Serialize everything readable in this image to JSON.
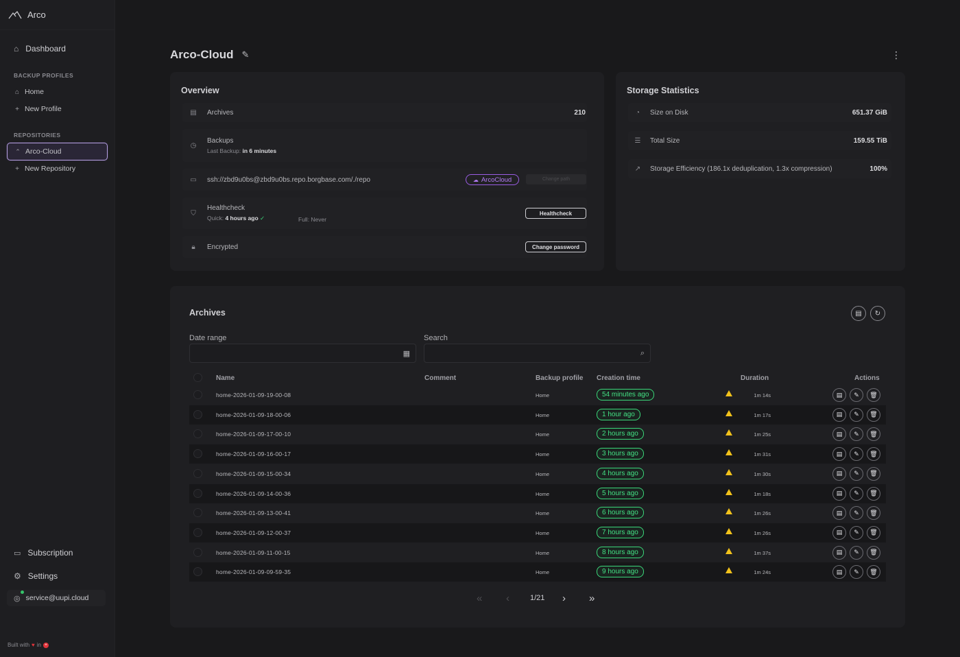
{
  "app": {
    "name": "Arco"
  },
  "sidebar": {
    "dashboard": "Dashboard",
    "backup_profiles_label": "BACKUP PROFILES",
    "profiles": [
      {
        "label": "Home",
        "icon": "home-icon"
      },
      {
        "label": "New Profile",
        "icon": "plus-icon"
      }
    ],
    "repositories_label": "REPOSITORIES",
    "repos": [
      {
        "label": "Arco-Cloud",
        "icon": "cloud-icon",
        "active": true
      },
      {
        "label": "New Repository",
        "icon": "plus-icon"
      }
    ],
    "subscription": "Subscription",
    "settings": "Settings",
    "user": "service@uupi.cloud",
    "footer_built": "Built with",
    "footer_in": "in"
  },
  "header": {
    "title": "Arco-Cloud"
  },
  "overview": {
    "title": "Overview",
    "archives_label": "Archives",
    "archives_count": "210",
    "backups_label": "Backups",
    "last_backup_label": "Last Backup:",
    "last_backup_value": "in 6 minutes",
    "repo_url": "ssh://zbd9u0bs@zbd9u0bs.repo.borgbase.com/./repo",
    "cloud_badge": "ArcoCloud",
    "change_path": "Change path",
    "healthcheck_label": "Healthcheck",
    "quick_label": "Quick:",
    "quick_value": "4 hours ago",
    "full_text": "Full: Never",
    "healthcheck_button": "Healthcheck",
    "encrypted_label": "Encrypted",
    "change_password": "Change password"
  },
  "storage": {
    "title": "Storage Statistics",
    "size_on_disk_label": "Size on Disk",
    "size_on_disk": "651.37 GiB",
    "total_size_label": "Total Size",
    "total_size": "159.55 TiB",
    "efficiency_label": "Storage Efficiency (186.1x deduplication, 1.3x compression)",
    "efficiency": "100%"
  },
  "archives": {
    "title": "Archives",
    "date_range_label": "Date range",
    "search_label": "Search",
    "columns": {
      "name": "Name",
      "comment": "Comment",
      "profile": "Backup profile",
      "creation": "Creation time",
      "duration": "Duration",
      "actions": "Actions"
    },
    "rows": [
      {
        "name": "home-2026-01-09-19-00-08",
        "profile": "Home",
        "time": "54 minutes ago",
        "duration": "1m 14s"
      },
      {
        "name": "home-2026-01-09-18-00-06",
        "profile": "Home",
        "time": "1 hour ago",
        "duration": "1m 17s"
      },
      {
        "name": "home-2026-01-09-17-00-10",
        "profile": "Home",
        "time": "2 hours ago",
        "duration": "1m 25s"
      },
      {
        "name": "home-2026-01-09-16-00-17",
        "profile": "Home",
        "time": "3 hours ago",
        "duration": "1m 31s"
      },
      {
        "name": "home-2026-01-09-15-00-34",
        "profile": "Home",
        "time": "4 hours ago",
        "duration": "1m 30s"
      },
      {
        "name": "home-2026-01-09-14-00-36",
        "profile": "Home",
        "time": "5 hours ago",
        "duration": "1m 18s"
      },
      {
        "name": "home-2026-01-09-13-00-41",
        "profile": "Home",
        "time": "6 hours ago",
        "duration": "1m 26s"
      },
      {
        "name": "home-2026-01-09-12-00-37",
        "profile": "Home",
        "time": "7 hours ago",
        "duration": "1m 26s"
      },
      {
        "name": "home-2026-01-09-11-00-15",
        "profile": "Home",
        "time": "8 hours ago",
        "duration": "1m 37s"
      },
      {
        "name": "home-2026-01-09-09-59-35",
        "profile": "Home",
        "time": "9 hours ago",
        "duration": "1m 24s"
      }
    ],
    "page": "1/21"
  },
  "colors": {
    "accent_purple": "#9b5de5",
    "success_green": "#43e083",
    "warning_yellow": "#f2c21b"
  }
}
